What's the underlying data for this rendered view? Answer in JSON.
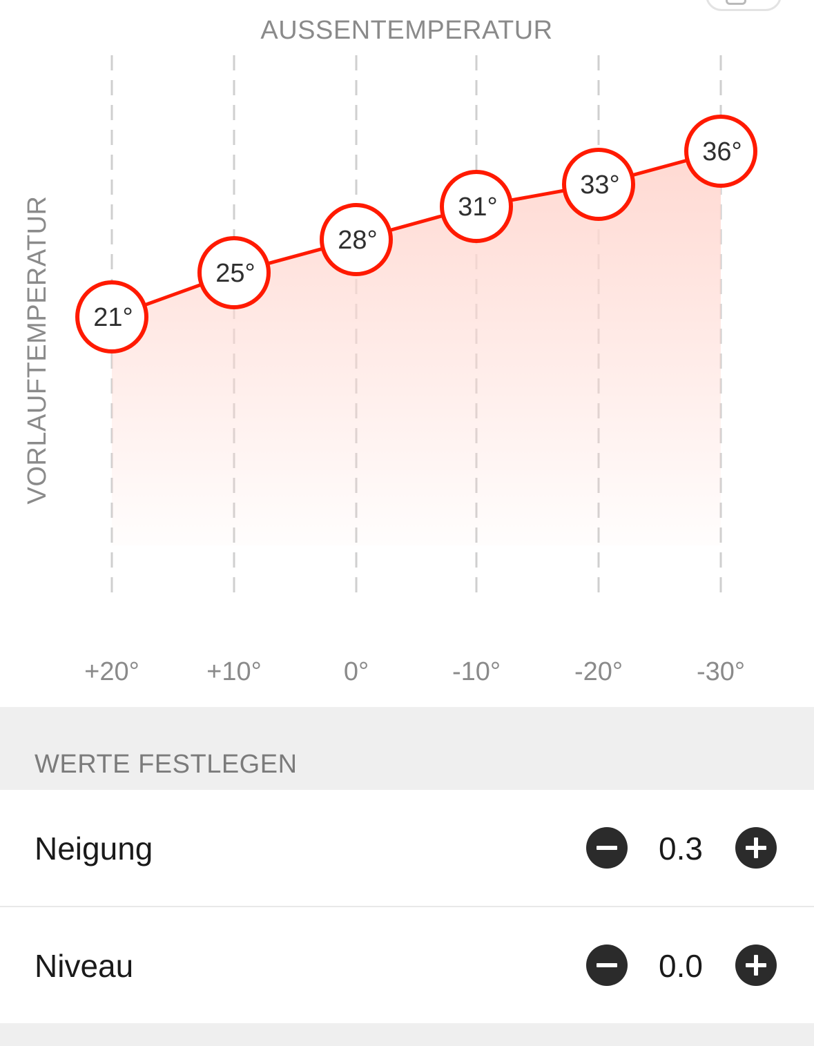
{
  "top_button": {
    "icon": "tray-icon"
  },
  "chart_data": {
    "type": "line",
    "title": "AUSSENTEMPERATUR",
    "xlabel": "AUSSENTEMPERATUR",
    "ylabel": "VORLAUFTEMPERATUR",
    "categories": [
      "+20°",
      "+10°",
      "0°",
      "-10°",
      "-20°",
      "-30°"
    ],
    "x": [
      20,
      10,
      0,
      -10,
      -20,
      -30
    ],
    "series": [
      {
        "values": [
          21,
          25,
          28,
          31,
          33,
          36
        ]
      }
    ],
    "point_labels": [
      "21°",
      "25°",
      "28°",
      "31°",
      "33°",
      "36°"
    ],
    "ylim": [
      10,
      40
    ],
    "grid": "vertical dashed",
    "colors": {
      "line": "#ff1a00",
      "fill": "#ffd9d2",
      "grid": "#cfcfcf"
    }
  },
  "section": {
    "title": "WERTE FESTLEGEN"
  },
  "settings": [
    {
      "label": "Neigung",
      "value": "0.3",
      "minus_icon": "minus-circle-icon",
      "plus_icon": "plus-circle-icon"
    },
    {
      "label": "Niveau",
      "value": "0.0",
      "minus_icon": "minus-circle-icon",
      "plus_icon": "plus-circle-icon"
    }
  ]
}
